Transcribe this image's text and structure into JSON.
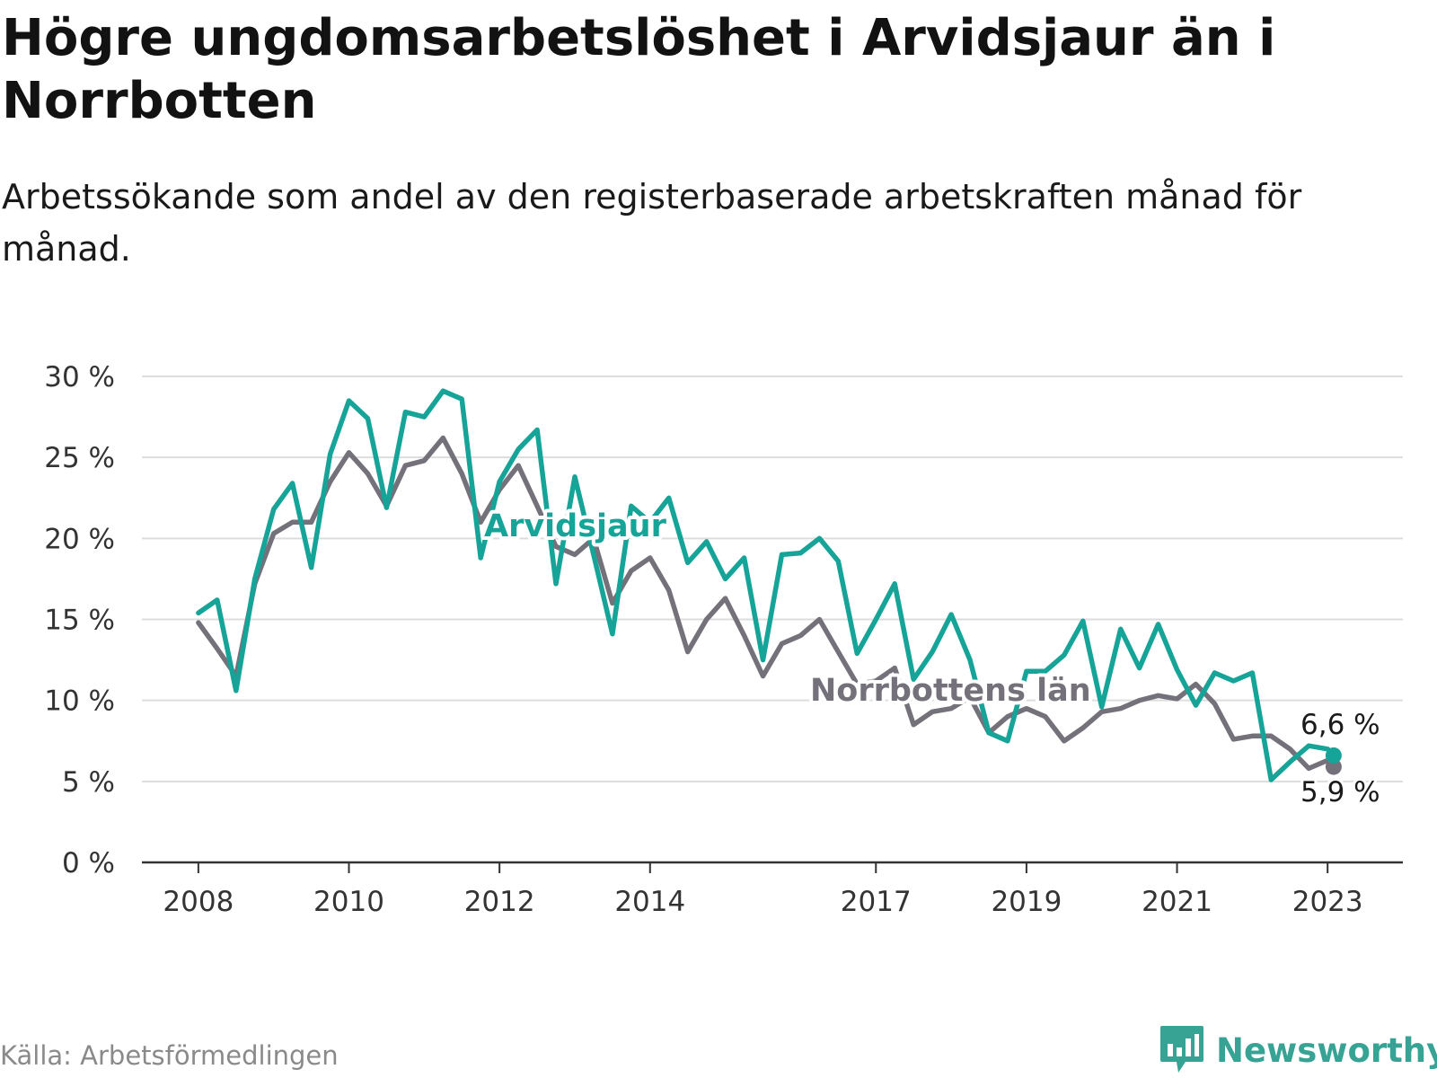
{
  "title": "Högre ungdomsarbetslöshet i Arvidsjaur än i Norrbotten",
  "subtitle": "Arbetssökande som andel av den registerbaserade arbetskraften månad för månad.",
  "source": "Källa: Arbetsförmedlingen",
  "brand": "Newsworthy",
  "colors": {
    "arvidsjaur": "#16a398",
    "norrbotten": "#74717a",
    "grid": "#dddddd",
    "axis": "#333333"
  },
  "chart_data": {
    "type": "line",
    "title": "Högre ungdomsarbetslöshet i Arvidsjaur än i Norrbotten",
    "xlabel": "",
    "ylabel": "",
    "ylim": [
      0,
      30
    ],
    "y_ticks": [
      0,
      5,
      10,
      15,
      20,
      25,
      30
    ],
    "y_tick_labels": [
      "0 %",
      "5 %",
      "10 %",
      "15 %",
      "20 %",
      "25 %",
      "30 %"
    ],
    "x_ticks": [
      2008,
      2010,
      2012,
      2014,
      2017,
      2019,
      2021,
      2023
    ],
    "x_tick_labels": [
      "2008",
      "2010",
      "2012",
      "2014",
      "2017",
      "2019",
      "2021",
      "2023"
    ],
    "xlim": [
      2007.25,
      2024.0
    ],
    "grid": true,
    "series": [
      {
        "name": "Norrbottens län",
        "label": "Norrbottens län",
        "x": [
          2008.0,
          2008.25,
          2008.5,
          2008.75,
          2009.0,
          2009.25,
          2009.5,
          2009.75,
          2010.0,
          2010.25,
          2010.5,
          2010.75,
          2011.0,
          2011.25,
          2011.5,
          2011.75,
          2012.0,
          2012.25,
          2012.5,
          2012.75,
          2013.0,
          2013.25,
          2013.5,
          2013.75,
          2014.0,
          2014.25,
          2014.5,
          2014.75,
          2015.0,
          2015.25,
          2015.5,
          2015.75,
          2016.0,
          2016.25,
          2016.5,
          2016.75,
          2017.0,
          2017.25,
          2017.5,
          2017.75,
          2018.0,
          2018.25,
          2018.5,
          2018.75,
          2019.0,
          2019.25,
          2019.5,
          2019.75,
          2020.0,
          2020.25,
          2020.5,
          2020.75,
          2021.0,
          2021.25,
          2021.5,
          2021.75,
          2022.0,
          2022.25,
          2022.5,
          2022.75,
          2023.0,
          2023.08
        ],
        "values": [
          14.8,
          13.2,
          11.5,
          17.2,
          20.3,
          21.0,
          21.0,
          23.5,
          25.3,
          24.0,
          22.0,
          24.5,
          24.8,
          26.2,
          24.0,
          21.0,
          23.0,
          24.5,
          22.0,
          19.5,
          19.0,
          20.0,
          16.0,
          18.0,
          18.8,
          16.8,
          13.0,
          15.0,
          16.3,
          14.0,
          11.5,
          13.5,
          14.0,
          15.0,
          13.0,
          11.0,
          11.2,
          12.0,
          8.5,
          9.3,
          9.5,
          10.2,
          8.0,
          9.0,
          9.5,
          9.0,
          7.5,
          8.3,
          9.3,
          9.5,
          10.0,
          10.3,
          10.1,
          11.0,
          9.8,
          7.6,
          7.8,
          7.8,
          7.0,
          5.8,
          6.3,
          5.9
        ]
      },
      {
        "name": "Arvidsjaur",
        "label": "Arvidsjaur",
        "x": [
          2008.0,
          2008.25,
          2008.5,
          2008.75,
          2009.0,
          2009.25,
          2009.5,
          2009.75,
          2010.0,
          2010.25,
          2010.5,
          2010.75,
          2011.0,
          2011.25,
          2011.5,
          2011.75,
          2012.0,
          2012.25,
          2012.5,
          2012.75,
          2013.0,
          2013.25,
          2013.5,
          2013.75,
          2014.0,
          2014.25,
          2014.5,
          2014.75,
          2015.0,
          2015.25,
          2015.5,
          2015.75,
          2016.0,
          2016.25,
          2016.5,
          2016.75,
          2017.0,
          2017.25,
          2017.5,
          2017.75,
          2018.0,
          2018.25,
          2018.5,
          2018.75,
          2019.0,
          2019.25,
          2019.5,
          2019.75,
          2020.0,
          2020.25,
          2020.5,
          2020.75,
          2021.0,
          2021.25,
          2021.5,
          2021.75,
          2022.0,
          2022.25,
          2022.5,
          2022.75,
          2023.0,
          2023.08
        ],
        "values": [
          15.4,
          16.2,
          10.6,
          17.5,
          21.8,
          23.4,
          18.2,
          25.2,
          28.5,
          27.4,
          21.9,
          27.8,
          27.5,
          29.1,
          28.6,
          18.8,
          23.5,
          25.5,
          26.7,
          17.2,
          23.8,
          19.0,
          14.1,
          22.0,
          21.0,
          22.5,
          18.5,
          19.8,
          17.5,
          18.8,
          12.5,
          19.0,
          19.1,
          20.0,
          18.6,
          12.9,
          15.0,
          17.2,
          11.3,
          13.0,
          15.3,
          12.5,
          8.0,
          7.5,
          11.8,
          11.8,
          12.8,
          14.9,
          9.6,
          14.4,
          12.0,
          14.7,
          11.9,
          9.7,
          11.7,
          11.2,
          11.7,
          5.1,
          6.2,
          7.2,
          7.0,
          6.6
        ]
      }
    ],
    "end_labels": {
      "Arvidsjaur": "6,6 %",
      "Norrbottens län": "5,9 %"
    },
    "legend": "inline"
  }
}
